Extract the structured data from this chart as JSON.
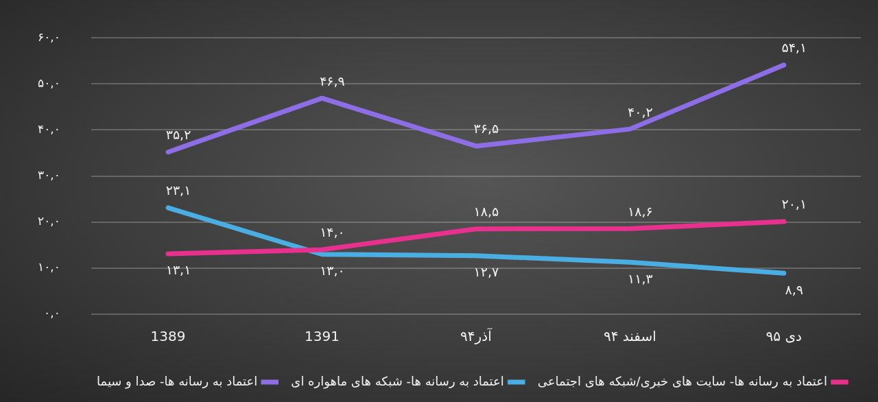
{
  "chart_data": {
    "type": "line",
    "categories": [
      "1389",
      "1391",
      "آذر۹۴",
      "اسفند ۹۴",
      "دی ۹۵"
    ],
    "series": [
      {
        "name": "اعتماد به رسانه ها- سایت های خبری/شبکه های اجتماعی",
        "color": "#e8308f",
        "values": [
          13.1,
          14.0,
          18.5,
          18.6,
          20.1
        ],
        "value_labels": [
          "۱۳,۱",
          "۱۴,۰",
          "۱۸,۵",
          "۱۸,۶",
          "۲۰,۱"
        ]
      },
      {
        "name": "اعتماد به رسانه ها- شبکه های ماهواره ای",
        "color": "#4aaee3",
        "values": [
          23.1,
          13.0,
          12.7,
          11.3,
          8.9
        ],
        "value_labels": [
          "۲۳,۱",
          "۱۳,۰",
          "۱۲,۷",
          "۱۱,۳",
          "۸,۹"
        ]
      },
      {
        "name": "اعتماد به رسانه ها- صدا و سیما",
        "color": "#8e6ee6",
        "values": [
          35.2,
          46.9,
          36.5,
          40.2,
          54.1
        ],
        "value_labels": [
          "۳۵,۲",
          "۴۶,۹",
          "۳۶,۵",
          "۴۰,۲",
          "۵۴,۱"
        ]
      }
    ],
    "ylim": [
      0,
      60
    ],
    "yticks": [
      {
        "value": 0,
        "label": "۰,۰"
      },
      {
        "value": 10,
        "label": "۱۰,۰"
      },
      {
        "value": 20,
        "label": "۲۰,۰"
      },
      {
        "value": 30,
        "label": "۳۰,۰"
      },
      {
        "value": 40,
        "label": "۴۰,۰"
      },
      {
        "value": 50,
        "label": "۵۰,۰"
      },
      {
        "value": 60,
        "label": "۶۰,۰"
      }
    ],
    "grid": "y",
    "legend": "bottom",
    "marker": "none",
    "line_style": "solid"
  }
}
